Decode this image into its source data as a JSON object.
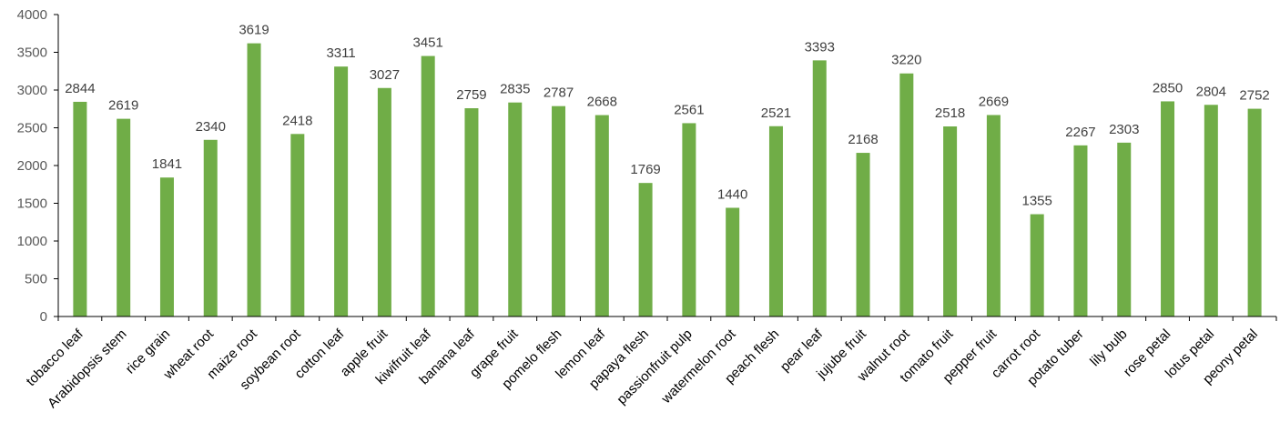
{
  "chart_data": {
    "type": "bar",
    "title": "",
    "xlabel": "",
    "ylabel": "",
    "ylim": [
      0,
      4000
    ],
    "yticks": [
      0,
      500,
      1000,
      1500,
      2000,
      2500,
      3000,
      3500,
      4000
    ],
    "grid": false,
    "legend": "none",
    "bar_color": "#70ad47",
    "categories": [
      "tobacco leaf",
      "Arabidopsis stem",
      "rice grain",
      "wheat root",
      "maize root",
      "soybean root",
      "cotton leaf",
      "apple fruit",
      "kiwifruit leaf",
      "banana leaf",
      "grape fruit",
      "pomelo flesh",
      "lemon leaf",
      "papaya flesh",
      "passionfruit pulp",
      "watermelon root",
      "peach flesh",
      "pear leaf",
      "jujube fruit",
      "walnut root",
      "tomato fruit",
      "pepper fruit",
      "carrot root",
      "potato tuber",
      "lily bulb",
      "rose petal",
      "lotus petal",
      "peony petal"
    ],
    "values": [
      2844,
      2619,
      1841,
      2340,
      3619,
      2418,
      3311,
      3027,
      3451,
      2759,
      2835,
      2787,
      2668,
      1769,
      2561,
      1440,
      2521,
      3393,
      2168,
      3220,
      2518,
      2669,
      1355,
      2267,
      2303,
      2850,
      2804,
      2752
    ]
  }
}
